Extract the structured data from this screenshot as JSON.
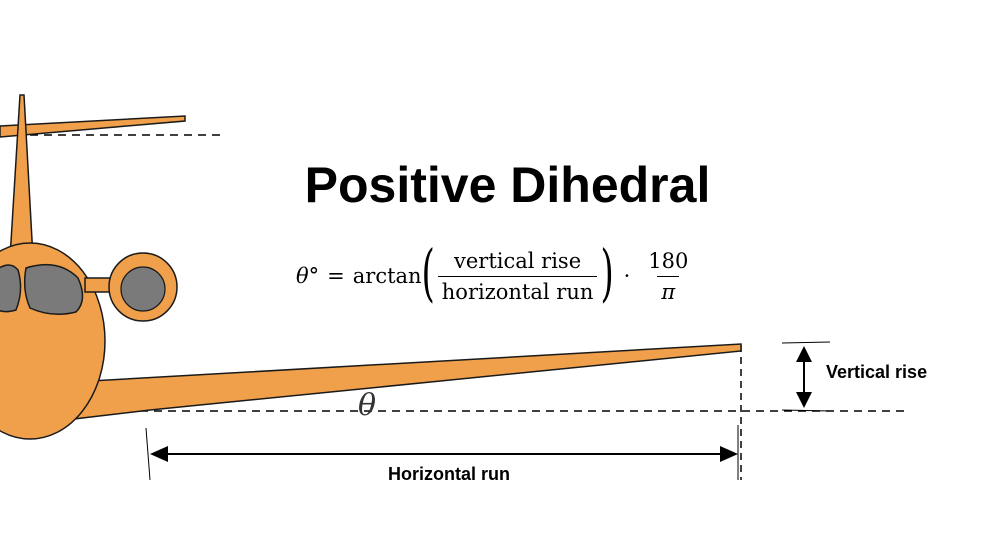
{
  "diagram": {
    "title": "Positive Dihedral",
    "formula": {
      "lhs": "θ°",
      "equals": "=",
      "func": "arctan",
      "numerator": "vertical rise",
      "denominator": "horizontal run",
      "dot": "·",
      "factor_numerator": "180",
      "factor_denominator": "π"
    },
    "angle_symbol": "θ",
    "labels": {
      "vertical_rise": "Vertical rise",
      "horizontal_run": "Horizontal run"
    },
    "colors": {
      "fuselage": "#F0A04A",
      "windows": "#7A7A7A",
      "outline": "#1A1A1A"
    }
  }
}
